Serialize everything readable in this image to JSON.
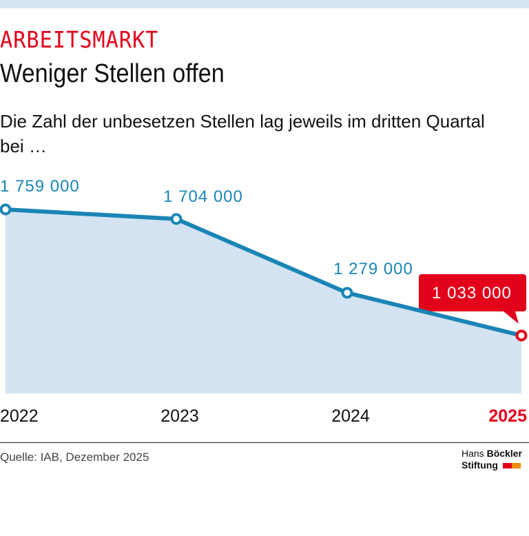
{
  "kicker": "ARBEITSMARKT",
  "title": "Weniger Stellen offen",
  "subtitle": "Die Zahl der unbesetzen Stellen lag jeweils im dritten Quartal bei …",
  "chart_data": {
    "type": "area",
    "categories": [
      "2022",
      "2023",
      "2024",
      "2025"
    ],
    "values": [
      1759000,
      1704000,
      1279000,
      1033000
    ],
    "labels": [
      "1 759 000",
      "1 704 000",
      "1 279 000",
      "1 033 000"
    ],
    "highlight_index": 3,
    "colors": {
      "line": "#1a85b5",
      "fill": "#d3e3f1",
      "highlight": "#e2001a",
      "label": "#1a85b5"
    },
    "grid": false
  },
  "source": "Quelle: IAB, Dezember 2025",
  "logo": {
    "line1a": "Hans ",
    "line1b": "Böckler",
    "line2": "Stiftung",
    "colors": [
      "#e2001a",
      "#f08a00"
    ]
  }
}
